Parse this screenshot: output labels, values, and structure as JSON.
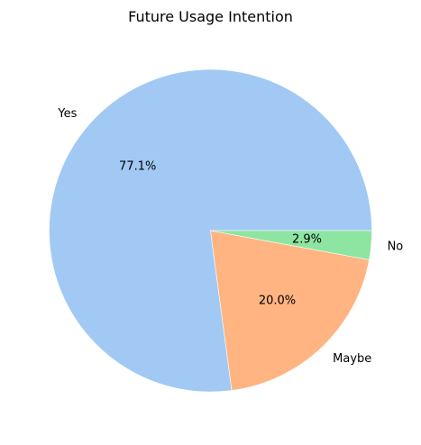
{
  "chart_data": {
    "type": "pie",
    "title": "Future Usage Intention",
    "slices": [
      {
        "label": "Yes",
        "value": 77.1,
        "pct_label": "77.1%",
        "color": "#a1c9f4"
      },
      {
        "label": "Maybe",
        "value": 20.0,
        "pct_label": "20.0%",
        "color": "#ffb482"
      },
      {
        "label": "No",
        "value": 2.9,
        "pct_label": "2.9%",
        "color": "#8de5a1"
      }
    ],
    "start_angle_deg": 0,
    "direction": "counterclockwise",
    "legend": "none"
  }
}
